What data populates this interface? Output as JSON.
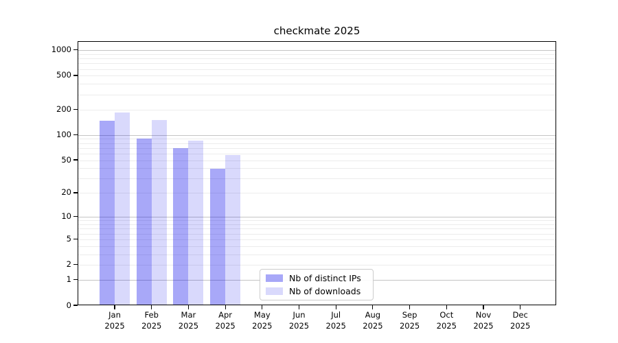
{
  "chart_data": {
    "type": "bar",
    "title": "checkmate 2025",
    "categories": [
      "Jan",
      "Feb",
      "Mar",
      "Apr",
      "May",
      "Jun",
      "Jul",
      "Aug",
      "Sep",
      "Oct",
      "Nov",
      "Dec"
    ],
    "category_year": "2025",
    "series": [
      {
        "name": "Nb of distinct IPs",
        "key": "distinct-ips",
        "color": "rgba(0,0,235,0.34)",
        "values": [
          150,
          92,
          70,
          40,
          null,
          null,
          null,
          null,
          null,
          null,
          null,
          null
        ]
      },
      {
        "name": "Nb of downloads",
        "key": "downloads",
        "color": "rgba(0,0,235,0.15)",
        "values": [
          185,
          153,
          87,
          58,
          null,
          null,
          null,
          null,
          null,
          null,
          null,
          null
        ]
      }
    ],
    "y_axis": {
      "scale": "log1p",
      "tick_labels": [
        "0",
        "1",
        "2",
        "5",
        "10",
        "20",
        "50",
        "100",
        "200",
        "500",
        "1000"
      ],
      "tick_values": [
        0,
        1,
        2,
        5,
        10,
        20,
        50,
        100,
        200,
        500,
        1000
      ],
      "major_gridline_values": [
        1,
        10,
        100,
        1000
      ],
      "top_value": 1265
    },
    "legend_position": "lower center",
    "grid": true
  },
  "colors": {
    "major_gridline": "#c4c4c4",
    "minor_gridline": "#ececec",
    "axis": "#000000",
    "background": "#ffffff"
  }
}
